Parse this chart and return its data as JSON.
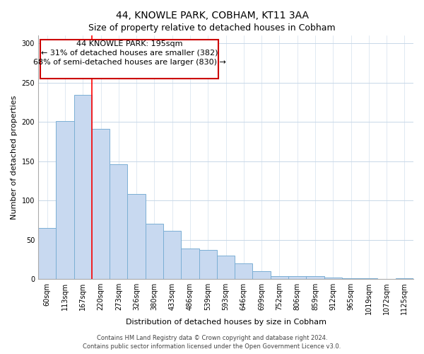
{
  "title": "44, KNOWLE PARK, COBHAM, KT11 3AA",
  "subtitle": "Size of property relative to detached houses in Cobham",
  "xlabel": "Distribution of detached houses by size in Cobham",
  "ylabel": "Number of detached properties",
  "categories": [
    "60sqm",
    "113sqm",
    "167sqm",
    "220sqm",
    "273sqm",
    "326sqm",
    "380sqm",
    "433sqm",
    "486sqm",
    "539sqm",
    "593sqm",
    "646sqm",
    "699sqm",
    "752sqm",
    "806sqm",
    "859sqm",
    "912sqm",
    "965sqm",
    "1019sqm",
    "1072sqm",
    "1125sqm"
  ],
  "values": [
    65,
    201,
    234,
    191,
    146,
    108,
    70,
    61,
    39,
    37,
    30,
    20,
    10,
    4,
    4,
    4,
    2,
    1,
    1,
    0,
    1
  ],
  "bar_color": "#c8d9f0",
  "bar_edge_color": "#7bafd4",
  "redline_x": 2.5,
  "annotation_line1": "44 KNOWLE PARK: 195sqm",
  "annotation_line2": "← 31% of detached houses are smaller (382)",
  "annotation_line3": "68% of semi-detached houses are larger (830) →",
  "annotation_box_color": "#ffffff",
  "annotation_box_edge": "#cc0000",
  "ylim": [
    0,
    310
  ],
  "yticks": [
    0,
    50,
    100,
    150,
    200,
    250,
    300
  ],
  "footer1": "Contains HM Land Registry data © Crown copyright and database right 2024.",
  "footer2": "Contains public sector information licensed under the Open Government Licence v3.0.",
  "title_fontsize": 10,
  "subtitle_fontsize": 9,
  "axis_label_fontsize": 8,
  "tick_fontsize": 7,
  "annotation_fontsize": 8,
  "footer_fontsize": 6,
  "grid_color": "#c8d8e8"
}
